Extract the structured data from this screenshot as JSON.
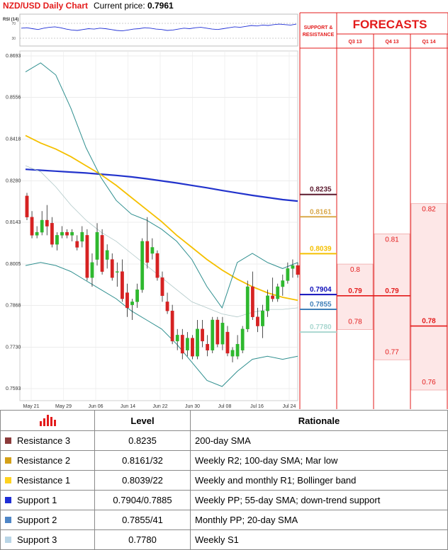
{
  "header": {
    "title": "NZD/USD Daily Chart",
    "price_label": "Current price:",
    "price_value": "0.7961"
  },
  "rsi": {
    "label": "RSI (14)",
    "levels": [
      "70",
      "30"
    ],
    "values": [
      55,
      56,
      54,
      52,
      55,
      57,
      58,
      56,
      53,
      51,
      50,
      52,
      54,
      53,
      55,
      54,
      52,
      50,
      49,
      51,
      53,
      54,
      56,
      55,
      53,
      52,
      50,
      51,
      53,
      55,
      54,
      56,
      57,
      55,
      53,
      52,
      54,
      56,
      58,
      57,
      59,
      61,
      60,
      62,
      61,
      63,
      64,
      63,
      62,
      64
    ]
  },
  "chart_data": {
    "type": "candlestick",
    "title": "NZD/USD Daily Chart",
    "ylim": [
      0.7593,
      0.8693
    ],
    "yticks": [
      "0.8693",
      "0.8556",
      "0.8418",
      "0.8280",
      "0.8143",
      "0.8005",
      "0.7868",
      "0.7730",
      "0.7593"
    ],
    "xticks": [
      "May 21",
      "May 29",
      "Jun 06",
      "Jun 14",
      "Jun 22",
      "Jun 30",
      "Jul 08",
      "Jul 16",
      "Jul 24"
    ],
    "candles": [
      [
        0.823,
        0.824,
        0.815,
        0.816
      ],
      [
        0.816,
        0.818,
        0.809,
        0.81
      ],
      [
        0.81,
        0.813,
        0.809,
        0.811
      ],
      [
        0.811,
        0.818,
        0.81,
        0.815
      ],
      [
        0.815,
        0.82,
        0.81,
        0.813
      ],
      [
        0.814,
        0.816,
        0.806,
        0.807
      ],
      [
        0.807,
        0.811,
        0.805,
        0.81
      ],
      [
        0.81,
        0.813,
        0.809,
        0.811
      ],
      [
        0.811,
        0.812,
        0.809,
        0.81
      ],
      [
        0.81,
        0.812,
        0.808,
        0.811
      ],
      [
        0.808,
        0.81,
        0.805,
        0.806
      ],
      [
        0.808,
        0.813,
        0.806,
        0.811
      ],
      [
        0.81,
        0.812,
        0.795,
        0.796
      ],
      [
        0.796,
        0.804,
        0.793,
        0.801
      ],
      [
        0.802,
        0.814,
        0.8,
        0.811
      ],
      [
        0.81,
        0.812,
        0.797,
        0.798
      ],
      [
        0.802,
        0.807,
        0.799,
        0.805
      ],
      [
        0.802,
        0.804,
        0.795,
        0.796
      ],
      [
        0.798,
        0.801,
        0.793,
        0.798
      ],
      [
        0.798,
        0.802,
        0.788,
        0.789
      ],
      [
        0.791,
        0.794,
        0.783,
        0.786
      ],
      [
        0.787,
        0.789,
        0.782,
        0.788
      ],
      [
        0.788,
        0.794,
        0.786,
        0.792
      ],
      [
        0.792,
        0.809,
        0.791,
        0.808
      ],
      [
        0.808,
        0.816,
        0.799,
        0.801
      ],
      [
        0.804,
        0.809,
        0.802,
        0.806
      ],
      [
        0.804,
        0.805,
        0.795,
        0.796
      ],
      [
        0.796,
        0.798,
        0.788,
        0.79
      ],
      [
        0.788,
        0.791,
        0.784,
        0.785
      ],
      [
        0.785,
        0.787,
        0.774,
        0.775
      ],
      [
        0.775,
        0.779,
        0.772,
        0.777
      ],
      [
        0.777,
        0.779,
        0.769,
        0.771
      ],
      [
        0.772,
        0.778,
        0.77,
        0.776
      ],
      [
        0.776,
        0.777,
        0.769,
        0.77
      ],
      [
        0.77,
        0.782,
        0.769,
        0.779
      ],
      [
        0.779,
        0.782,
        0.773,
        0.775
      ],
      [
        0.774,
        0.777,
        0.77,
        0.772
      ],
      [
        0.772,
        0.783,
        0.771,
        0.782
      ],
      [
        0.782,
        0.783,
        0.773,
        0.774
      ],
      [
        0.774,
        0.783,
        0.772,
        0.781
      ],
      [
        0.778,
        0.78,
        0.77,
        0.771
      ],
      [
        0.77,
        0.773,
        0.768,
        0.772
      ],
      [
        0.77,
        0.777,
        0.769,
        0.774
      ],
      [
        0.772,
        0.78,
        0.771,
        0.779
      ],
      [
        0.779,
        0.795,
        0.778,
        0.793
      ],
      [
        0.793,
        0.798,
        0.782,
        0.783
      ],
      [
        0.783,
        0.786,
        0.778,
        0.78
      ],
      [
        0.78,
        0.787,
        0.776,
        0.785
      ],
      [
        0.785,
        0.792,
        0.783,
        0.79
      ],
      [
        0.79,
        0.796,
        0.788,
        0.789
      ],
      [
        0.789,
        0.794,
        0.788,
        0.793
      ],
      [
        0.793,
        0.797,
        0.79,
        0.795
      ],
      [
        0.795,
        0.801,
        0.794,
        0.799
      ],
      [
        0.799,
        0.802,
        0.796,
        0.8
      ],
      [
        0.8,
        0.801,
        0.796,
        0.797
      ]
    ],
    "series": [
      {
        "color": "#2233cc",
        "values": [
          0.8318,
          0.8315,
          0.8312,
          0.8309,
          0.8306,
          0.8302,
          0.8298,
          0.8293,
          0.8287,
          0.828,
          0.8273,
          0.8265,
          0.8257,
          0.8248,
          0.824,
          0.8232,
          0.8225,
          0.8218,
          0.8213
        ]
      },
      {
        "color": "#f5c000",
        "values": [
          0.843,
          0.8405,
          0.8385,
          0.836,
          0.833,
          0.83,
          0.8265,
          0.8225,
          0.8185,
          0.8145,
          0.81,
          0.806,
          0.802,
          0.7985,
          0.7955,
          0.793,
          0.791,
          0.7895,
          0.7885
        ]
      },
      {
        "color": "#2f8f8f",
        "values": [
          0.864,
          0.867,
          0.863,
          0.852,
          0.839,
          0.829,
          0.8215,
          0.817,
          0.815,
          0.812,
          0.808,
          0.802,
          0.793,
          0.786,
          0.801,
          0.804,
          0.801,
          0.799,
          0.801
        ]
      },
      {
        "color": "#2f8f8f",
        "values": [
          0.8,
          0.801,
          0.8,
          0.798,
          0.795,
          0.792,
          0.789,
          0.785,
          0.782,
          0.779,
          0.774,
          0.768,
          0.762,
          0.76,
          0.765,
          0.769,
          0.77,
          0.769,
          0.77
        ]
      },
      {
        "color": "#b0c8c8",
        "values": [
          0.833,
          0.831,
          0.826,
          0.82,
          0.815,
          0.811,
          0.808,
          0.804,
          0.8,
          0.796,
          0.792,
          0.788,
          0.786,
          0.784,
          0.783,
          0.7845,
          0.7855,
          0.7855,
          0.786
        ]
      }
    ]
  },
  "support_resistance": {
    "header_line1": "SUPPORT &",
    "header_line2": "RESISTANCE",
    "levels": [
      {
        "value": "0.8235",
        "color": "#5c1a2e"
      },
      {
        "value": "0.8161",
        "color": "#d9a84a"
      },
      {
        "value": "0.8039",
        "color": "#f5c000"
      },
      {
        "value": "0.7904",
        "color": "#1111bb"
      },
      {
        "value": "0.7855",
        "color": "#3f7fb8"
      },
      {
        "value": "0.7780",
        "color": "#a9d7d0"
      }
    ]
  },
  "forecasts": {
    "title": "FORECASTS",
    "columns": [
      {
        "label": "Q3 13",
        "high": "0.8",
        "mid": "0.79",
        "low": "0.78"
      },
      {
        "label": "Q4 13",
        "high": "0.81",
        "mid": "0.79",
        "low": "0.77"
      },
      {
        "label": "Q1 14",
        "high": "0.82",
        "mid": "0.78",
        "low": "0.76"
      }
    ]
  },
  "table": {
    "header_level": "Level",
    "header_rationale": "Rationale",
    "rows": [
      {
        "name": "Resistance 3",
        "color": "#8b3a3a",
        "level": "0.8235",
        "rationale": "200-day SMA"
      },
      {
        "name": "Resistance 2",
        "color": "#d4a017",
        "level": "0.8161/32",
        "rationale": "Weekly R2; 100-day SMA; Mar low"
      },
      {
        "name": "Resistance 1",
        "color": "#ffd21f",
        "level": "0.8039/22",
        "rationale": "Weekly and monthly R1; Bollinger band"
      },
      {
        "name": "Support 1",
        "color": "#1f2fd6",
        "level": "0.7904/0.7885",
        "rationale": "Weekly PP; 55-day SMA; down-trend support"
      },
      {
        "name": "Support 2",
        "color": "#4f86c6",
        "level": "0.7855/41",
        "rationale": "Monthly PP; 20-day SMA"
      },
      {
        "name": "Support 3",
        "color": "#b9d5e6",
        "level": "0.7780",
        "rationale": "Weekly S1"
      }
    ]
  }
}
